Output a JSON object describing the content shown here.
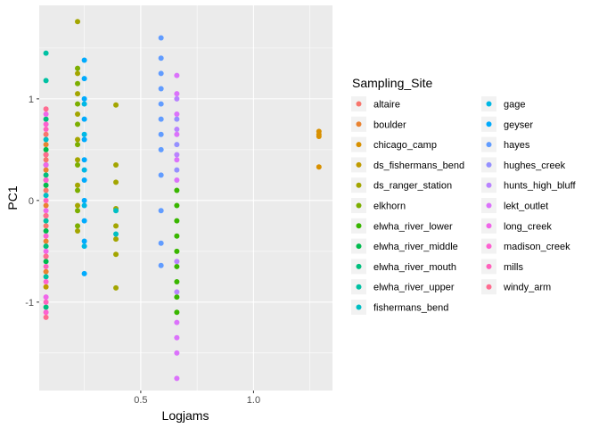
{
  "chart_data": {
    "type": "scatter",
    "xlabel": "Logjams",
    "ylabel": "PC1",
    "xlim": [
      0.05,
      1.35
    ],
    "ylim": [
      -1.87,
      1.92
    ],
    "x_ticks": [
      0.5,
      1.0
    ],
    "x_tick_labels": [
      "0.5",
      "1.0"
    ],
    "y_ticks": [
      -1,
      0,
      1
    ],
    "y_tick_labels": [
      "-1",
      "0",
      "1"
    ],
    "grid": true,
    "legend": {
      "title": "Sampling_Site",
      "placement": "right"
    },
    "series": [
      {
        "name": "altaire",
        "color": "#F8766D",
        "points": [
          [
            0.08,
            0.4
          ],
          [
            0.08,
            0.1
          ],
          [
            0.08,
            -0.25
          ],
          [
            0.08,
            -0.55
          ],
          [
            0.08,
            0.65
          ]
        ]
      },
      {
        "name": "boulder",
        "color": "#EA8331",
        "points": [
          [
            0.08,
            0.3
          ],
          [
            0.08,
            -0.05
          ],
          [
            0.08,
            -0.4
          ],
          [
            0.08,
            0.55
          ],
          [
            0.08,
            -0.7
          ]
        ]
      },
      {
        "name": "chicago_camp",
        "color": "#D89000",
        "points": [
          [
            1.29,
            0.68
          ],
          [
            1.29,
            0.65
          ],
          [
            1.29,
            0.33
          ],
          [
            1.29,
            0.63
          ]
        ]
      },
      {
        "name": "ds_fishermans_bend",
        "color": "#C09B00",
        "points": [
          [
            0.08,
            0.2
          ],
          [
            0.08,
            -0.15
          ],
          [
            0.08,
            0.45
          ],
          [
            0.08,
            -0.85
          ]
        ]
      },
      {
        "name": "ds_ranger_station",
        "color": "#A3A500",
        "points": [
          [
            0.39,
            0.94
          ],
          [
            0.39,
            0.35
          ],
          [
            0.39,
            0.18
          ],
          [
            0.39,
            -0.08
          ],
          [
            0.39,
            -0.25
          ],
          [
            0.39,
            -0.38
          ],
          [
            0.39,
            -0.53
          ],
          [
            0.39,
            -0.86
          ],
          [
            0.22,
            1.76
          ],
          [
            0.22,
            1.25
          ],
          [
            0.22,
            1.05
          ],
          [
            0.22,
            0.85
          ],
          [
            0.22,
            0.6
          ],
          [
            0.22,
            0.4
          ],
          [
            0.22,
            0.15
          ],
          [
            0.22,
            -0.05
          ],
          [
            0.22,
            -0.3
          ]
        ]
      },
      {
        "name": "elkhorn",
        "color": "#7CAE00",
        "points": [
          [
            0.22,
            1.3
          ],
          [
            0.22,
            1.15
          ],
          [
            0.22,
            0.95
          ],
          [
            0.22,
            0.75
          ],
          [
            0.22,
            0.55
          ],
          [
            0.22,
            0.35
          ],
          [
            0.22,
            0.1
          ],
          [
            0.22,
            -0.1
          ],
          [
            0.22,
            -0.25
          ]
        ]
      },
      {
        "name": "elwha_river_lower",
        "color": "#39B600",
        "points": [
          [
            0.66,
            0.1
          ],
          [
            0.66,
            -0.05
          ],
          [
            0.66,
            -0.2
          ],
          [
            0.66,
            -0.35
          ],
          [
            0.66,
            -0.5
          ],
          [
            0.66,
            -0.65
          ],
          [
            0.66,
            -0.8
          ],
          [
            0.66,
            -0.95
          ],
          [
            0.66,
            -1.1
          ]
        ]
      },
      {
        "name": "elwha_river_middle",
        "color": "#00BB4E",
        "points": [
          [
            0.08,
            0.5
          ],
          [
            0.08,
            0.15
          ],
          [
            0.08,
            -0.3
          ],
          [
            0.08,
            -0.6
          ]
        ]
      },
      {
        "name": "elwha_river_mouth",
        "color": "#00BF7D",
        "points": [
          [
            0.08,
            0.8
          ],
          [
            0.08,
            0.25
          ],
          [
            0.08,
            -0.45
          ],
          [
            0.08,
            -1.05
          ]
        ]
      },
      {
        "name": "elwha_river_upper",
        "color": "#00C1A3",
        "points": [
          [
            0.08,
            1.45
          ],
          [
            0.08,
            1.18
          ],
          [
            0.08,
            0.35
          ],
          [
            0.08,
            -0.2
          ],
          [
            0.08,
            -0.75
          ]
        ]
      },
      {
        "name": "fishermans_bend",
        "color": "#00BFC4",
        "points": [
          [
            0.39,
            -0.1
          ],
          [
            0.39,
            -0.33
          ],
          [
            0.08,
            0.6
          ],
          [
            0.08,
            0.05
          ]
        ]
      },
      {
        "name": "gage",
        "color": "#00B8E5",
        "points": [
          [
            0.25,
            0.95
          ],
          [
            0.25,
            0.65
          ],
          [
            0.25,
            0.3
          ],
          [
            0.25,
            -0.05
          ],
          [
            0.25,
            -0.45
          ]
        ]
      },
      {
        "name": "geyser",
        "color": "#00ABFD",
        "points": [
          [
            0.25,
            1.38
          ],
          [
            0.25,
            1.2
          ],
          [
            0.25,
            1.0
          ],
          [
            0.25,
            0.8
          ],
          [
            0.25,
            0.6
          ],
          [
            0.25,
            0.4
          ],
          [
            0.25,
            0.2
          ],
          [
            0.25,
            0.0
          ],
          [
            0.25,
            -0.2
          ],
          [
            0.25,
            -0.4
          ],
          [
            0.25,
            -0.72
          ]
        ]
      },
      {
        "name": "hayes",
        "color": "#619CFF",
        "points": [
          [
            0.59,
            1.6
          ],
          [
            0.59,
            1.4
          ],
          [
            0.59,
            1.25
          ],
          [
            0.59,
            1.1
          ],
          [
            0.59,
            0.95
          ],
          [
            0.59,
            0.8
          ],
          [
            0.59,
            0.65
          ],
          [
            0.59,
            0.5
          ],
          [
            0.59,
            0.25
          ],
          [
            0.59,
            -0.1
          ],
          [
            0.59,
            -0.42
          ],
          [
            0.59,
            -0.64
          ]
        ]
      },
      {
        "name": "hughes_creek",
        "color": "#9590FF",
        "points": [
          [
            0.66,
            0.8
          ],
          [
            0.66,
            0.55
          ],
          [
            0.66,
            0.3
          ]
        ]
      },
      {
        "name": "hunts_high_bluff",
        "color": "#B983FF",
        "points": [
          [
            0.66,
            1.0
          ],
          [
            0.66,
            0.7
          ],
          [
            0.66,
            0.45
          ],
          [
            0.66,
            -0.6
          ],
          [
            0.66,
            -0.9
          ]
        ]
      },
      {
        "name": "lekt_outlet",
        "color": "#DB72FB",
        "points": [
          [
            0.66,
            1.23
          ],
          [
            0.66,
            1.05
          ],
          [
            0.66,
            0.85
          ],
          [
            0.66,
            0.65
          ],
          [
            0.66,
            0.4
          ],
          [
            0.66,
            0.2
          ],
          [
            0.66,
            -1.2
          ],
          [
            0.66,
            -1.35
          ],
          [
            0.66,
            -1.5
          ],
          [
            0.66,
            -1.75
          ]
        ]
      },
      {
        "name": "long_creek",
        "color": "#F066E9",
        "points": [
          [
            0.08,
            0.85
          ],
          [
            0.08,
            0.35
          ],
          [
            0.08,
            -0.1
          ],
          [
            0.08,
            -0.5
          ],
          [
            0.08,
            -0.95
          ]
        ]
      },
      {
        "name": "madison_creek",
        "color": "#FD61D1",
        "points": [
          [
            0.08,
            0.75
          ],
          [
            0.08,
            0.2
          ],
          [
            0.08,
            -0.35
          ],
          [
            0.08,
            -0.8
          ],
          [
            0.08,
            -1.1
          ]
        ]
      },
      {
        "name": "mills",
        "color": "#FF62BC",
        "points": [
          [
            0.08,
            0.7
          ],
          [
            0.08,
            0.0
          ],
          [
            0.08,
            -0.65
          ],
          [
            0.08,
            -1.0
          ]
        ]
      },
      {
        "name": "windy_arm",
        "color": "#FF6C90",
        "points": [
          [
            0.08,
            0.9
          ],
          [
            0.08,
            0.45
          ],
          [
            0.08,
            -0.15
          ],
          [
            0.08,
            -0.55
          ],
          [
            0.08,
            -1.15
          ]
        ]
      }
    ]
  }
}
